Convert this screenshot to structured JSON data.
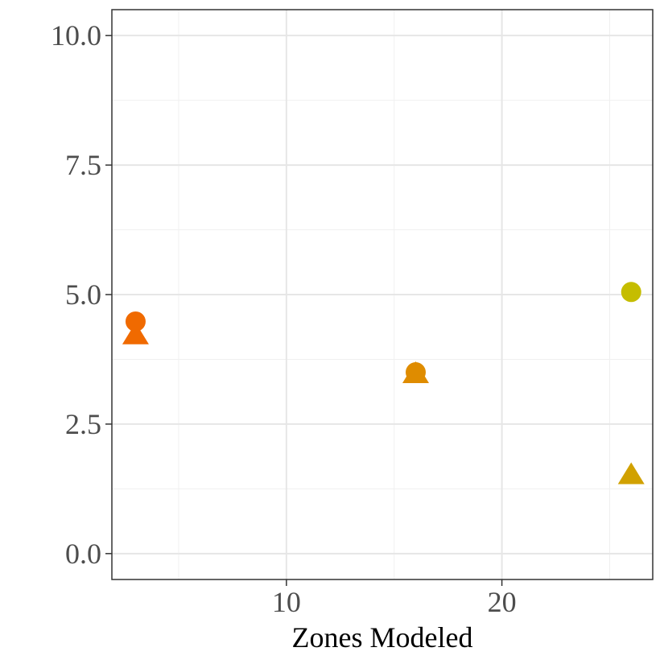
{
  "chart_data": {
    "type": "scatter",
    "title": "",
    "xlabel": "Zones Modeled",
    "ylabel": "",
    "xlim": [
      1.9,
      27.0
    ],
    "ylim": [
      -0.5,
      10.5
    ],
    "x_ticks": [
      10,
      20
    ],
    "x_tick_labels": [
      "10",
      "20"
    ],
    "x_minor_ticks": [
      5,
      15,
      25
    ],
    "y_ticks": [
      0,
      2.5,
      5,
      7.5,
      10
    ],
    "y_tick_labels": [
      "0.0",
      "2.5",
      "5.0",
      "7.5",
      "10.0"
    ],
    "y_minor_ticks": [
      1.25,
      3.75,
      6.25,
      8.75
    ],
    "grid": true,
    "legend": "none",
    "points": [
      {
        "x": 3,
        "y": 4.48,
        "shape": "circle",
        "color": "#f06a00"
      },
      {
        "x": 3,
        "y": 4.2,
        "shape": "triangle",
        "color": "#f06a00"
      },
      {
        "x": 16,
        "y": 3.5,
        "shape": "circle",
        "color": "#df8c00"
      },
      {
        "x": 16,
        "y": 3.45,
        "shape": "triangle",
        "color": "#df8c00"
      },
      {
        "x": 26,
        "y": 5.05,
        "shape": "circle",
        "color": "#c5bd00"
      },
      {
        "x": 26,
        "y": 1.5,
        "shape": "triangle",
        "color": "#d1a100"
      }
    ]
  }
}
